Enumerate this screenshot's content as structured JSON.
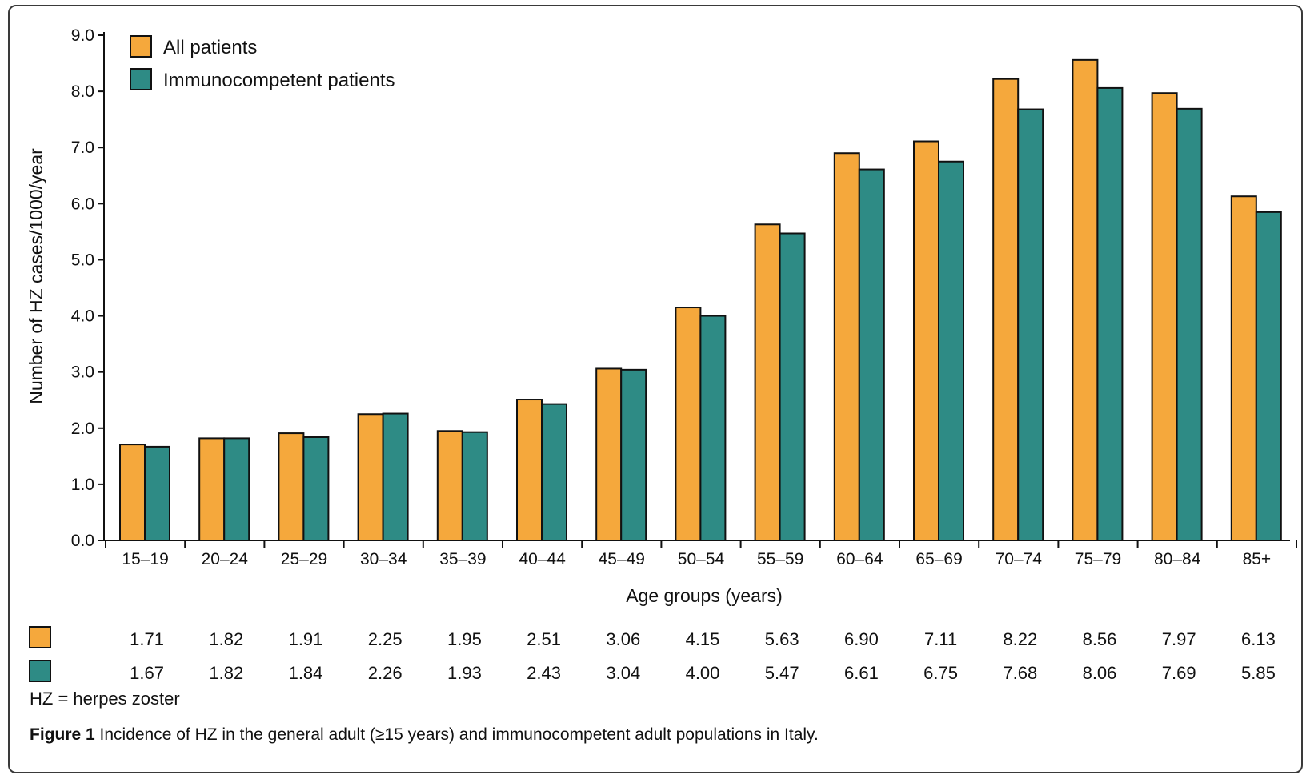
{
  "chart_data": {
    "type": "bar",
    "categories": [
      "15–19",
      "20–24",
      "25–29",
      "30–34",
      "35–39",
      "40–44",
      "45–49",
      "50–54",
      "55–59",
      "60–64",
      "65–69",
      "70–74",
      "75–79",
      "80–84",
      "85+"
    ],
    "series": [
      {
        "name": "All patients",
        "color": "#F5A83C",
        "values": [
          1.71,
          1.82,
          1.91,
          2.25,
          1.95,
          2.51,
          3.06,
          4.15,
          5.63,
          6.9,
          7.11,
          8.22,
          8.56,
          7.97,
          6.13
        ],
        "labels": [
          "1.71",
          "1.82",
          "1.91",
          "2.25",
          "1.95",
          "2.51",
          "3.06",
          "4.15",
          "5.63",
          "6.90",
          "7.11",
          "8.22",
          "8.56",
          "7.97",
          "6.13"
        ]
      },
      {
        "name": "Immunocompetent patients",
        "color": "#2E8B85",
        "values": [
          1.67,
          1.82,
          1.84,
          2.26,
          1.93,
          2.43,
          3.04,
          4.0,
          5.47,
          6.61,
          6.75,
          7.68,
          8.06,
          7.69,
          5.85
        ],
        "labels": [
          "1.67",
          "1.82",
          "1.84",
          "2.26",
          "1.93",
          "2.43",
          "3.04",
          "4.00",
          "5.47",
          "6.61",
          "6.75",
          "7.68",
          "8.06",
          "7.69",
          "5.85"
        ]
      }
    ],
    "xlabel": "Age groups (years)",
    "ylabel": "Number of HZ cases/1000/year",
    "ylim": [
      0,
      9
    ],
    "yticks": [
      "0.0",
      "1.0",
      "2.0",
      "3.0",
      "4.0",
      "5.0",
      "6.0",
      "7.0",
      "8.0",
      "9.0"
    ],
    "grid": false,
    "legend": "top-left"
  },
  "footnote": "HZ = herpes zoster",
  "caption": {
    "label": "Figure 1",
    "text": " Incidence of HZ in the general adult (≥15 years) and immunocompetent adult populations in Italy."
  }
}
